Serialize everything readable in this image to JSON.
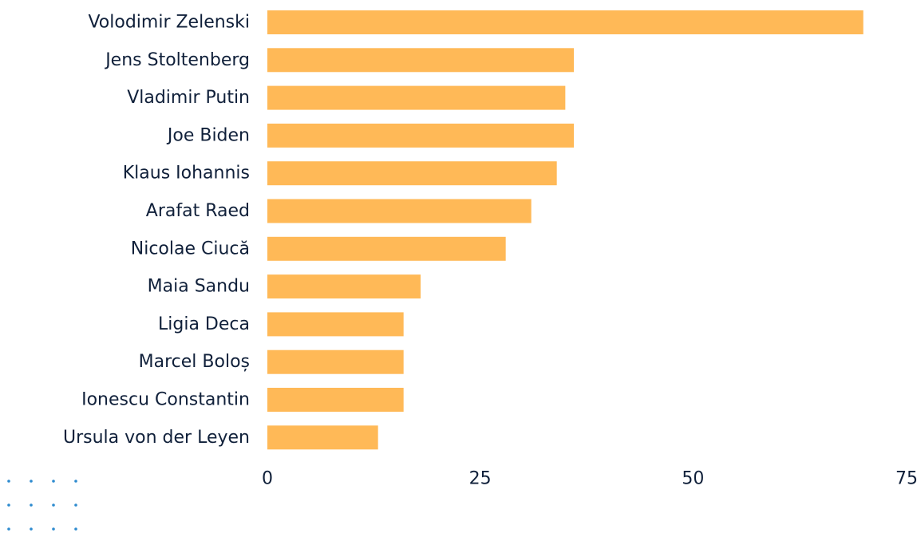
{
  "chart_data": {
    "type": "bar",
    "orientation": "horizontal",
    "categories": [
      "Volodimir Zelenski",
      "Jens Stoltenberg",
      "Vladimir Putin",
      "Joe Biden",
      "Klaus Iohannis",
      "Arafat Raed",
      "Nicolae Ciucă",
      "Maia Sandu",
      "Ligia Deca",
      "Marcel Boloș",
      "Ionescu Constantin",
      "Ursula von der Leyen"
    ],
    "values": [
      70,
      36,
      35,
      36,
      34,
      31,
      28,
      18,
      16,
      16,
      16,
      13
    ],
    "xlim": [
      0,
      75
    ],
    "xticks": [
      0,
      25,
      50,
      75
    ],
    "title": "",
    "xlabel": "",
    "ylabel": "",
    "grid": false,
    "legend": "none",
    "colors": {
      "bar": "#ffb957",
      "text": "#10203a",
      "accent_dots": "#2e8bcf"
    }
  }
}
